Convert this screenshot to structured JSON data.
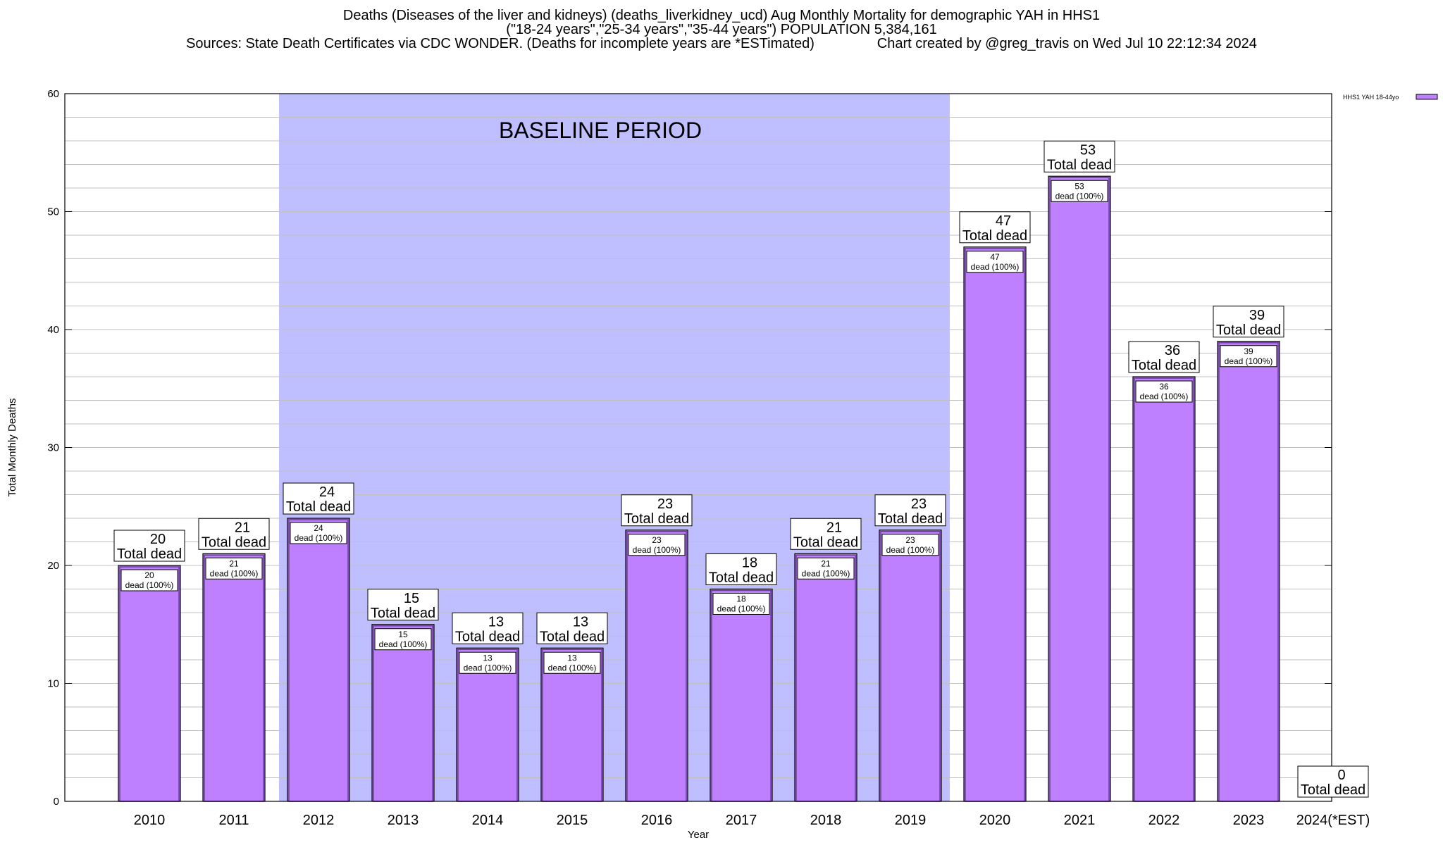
{
  "header": {
    "line1": "Deaths (Diseases of the liver and kidneys) (deaths_liverkidney_ucd) Aug Monthly Mortality for demographic YAH in HHS1",
    "line2": "(\"18-24 years\",\"25-34 years\",\"35-44 years\") POPULATION 5,384,161",
    "line3": "Sources: State Death Certificates via CDC WONDER. (Deaths for incomplete years are *ESTimated)                Chart created by @greg_travis on Wed Jul 10 22:12:34 2024"
  },
  "chart_data": {
    "type": "bar",
    "xlabel": "Year",
    "ylabel": "Total Monthly Deaths",
    "ylim": [
      0,
      60
    ],
    "yticks": [
      0,
      10,
      20,
      30,
      40,
      50,
      60
    ],
    "grid": true,
    "legend": {
      "position": "top-right",
      "entries": [
        "HHS1 YAH 18-44yo"
      ]
    },
    "categories": [
      "2010",
      "2011",
      "2012",
      "2013",
      "2014",
      "2015",
      "2016",
      "2017",
      "2018",
      "2019",
      "2020",
      "2021",
      "2022",
      "2023",
      "2024(*EST)"
    ],
    "series": [
      {
        "name": "HHS1 YAH 18-44yo",
        "values": [
          20,
          21,
          24,
          15,
          13,
          13,
          23,
          18,
          21,
          23,
          47,
          53,
          36,
          39,
          0
        ]
      }
    ],
    "total_label": "Total dead",
    "inner_label": "dead (100%)",
    "baseline": {
      "label": "BASELINE PERIOD",
      "from": "2012",
      "to": "2019"
    },
    "colors": {
      "bar": "#bf80ff",
      "bar_edge": "#6a3d9a",
      "baseline": "#bfbfff",
      "grid": "#c0c0c0"
    }
  }
}
